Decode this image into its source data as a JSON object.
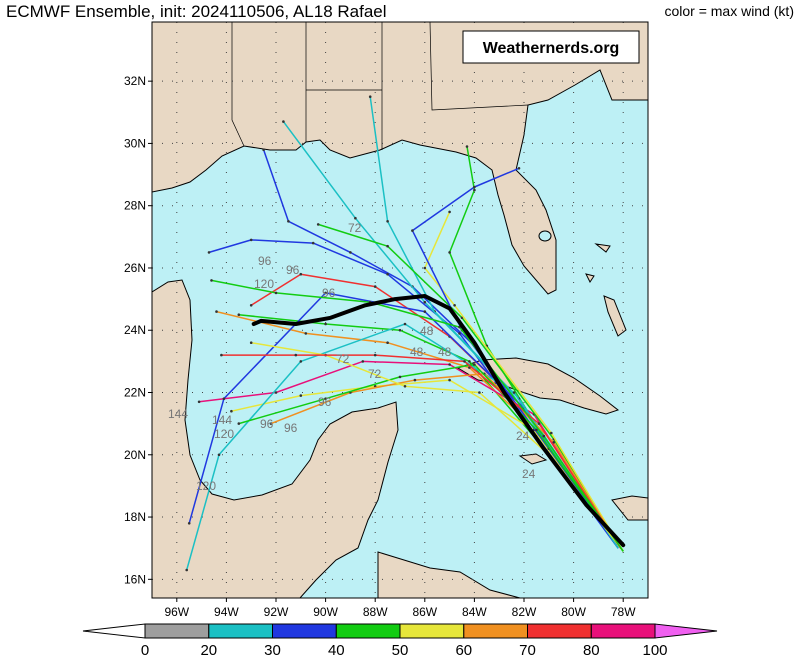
{
  "header": {
    "title": "ECMWF Ensemble, init: 2024110506, AL18 Rafael",
    "legend_note": "color = max wind (kt)"
  },
  "branding": {
    "text": "Weathernerds.org"
  },
  "map": {
    "lat_labels": [
      "32N",
      "30N",
      "28N",
      "26N",
      "24N",
      "22N",
      "20N",
      "18N",
      "16N"
    ],
    "lon_labels": [
      "96W",
      "94W",
      "92W",
      "90W",
      "88W",
      "86W",
      "84W",
      "82W",
      "80W",
      "78W"
    ],
    "ocean_color": "#bdf0f5",
    "land_color": "#e8d8c4",
    "hour_labels": [
      "144",
      "144",
      "120",
      "120",
      "120",
      "96",
      "96",
      "96",
      "96",
      "96",
      "96",
      "72",
      "72",
      "72",
      "48",
      "48",
      "48",
      "24",
      "24"
    ]
  },
  "colorbar": {
    "ticks": [
      "0",
      "20",
      "30",
      "40",
      "50",
      "60",
      "70",
      "80",
      "100"
    ],
    "colors": [
      "#ffffff",
      "#9e9e9e",
      "#1bc0c4",
      "#2038e0",
      "#12cc12",
      "#e6e63a",
      "#f09020",
      "#f03030",
      "#e8107a",
      "#f060f0"
    ]
  },
  "chart_data": {
    "type": "track-map",
    "ensemble_mean_track": [
      {
        "lon": -78.0,
        "lat": 17.1
      },
      {
        "lon": -79.5,
        "lat": 18.4
      },
      {
        "lon": -81.2,
        "lat": 20.2
      },
      {
        "lon": -82.8,
        "lat": 22.0
      },
      {
        "lon": -84.0,
        "lat": 23.6
      },
      {
        "lon": -85.0,
        "lat": 24.7
      },
      {
        "lon": -86.0,
        "lat": 25.1
      },
      {
        "lon": -87.2,
        "lat": 25.0
      },
      {
        "lon": -88.4,
        "lat": 24.8
      },
      {
        "lon": -89.8,
        "lat": 24.4
      },
      {
        "lon": -91.2,
        "lat": 24.2
      },
      {
        "lon": -92.6,
        "lat": 24.3
      },
      {
        "lon": -92.9,
        "lat": 24.2
      }
    ],
    "members": [
      {
        "color": "#2038e0",
        "points": [
          [
            -78.2,
            17.0
          ],
          [
            -81.5,
            20.6
          ],
          [
            -84.0,
            23.5
          ],
          [
            -86.5,
            25.4
          ],
          [
            -89.0,
            26.5
          ],
          [
            -91.5,
            27.5
          ],
          [
            -92.5,
            29.8
          ]
        ]
      },
      {
        "color": "#2038e0",
        "points": [
          [
            -78.2,
            17.0
          ],
          [
            -81.8,
            20.9
          ],
          [
            -84.6,
            23.9
          ],
          [
            -87.5,
            25.8
          ],
          [
            -90.5,
            26.8
          ],
          [
            -93.0,
            26.9
          ],
          [
            -94.7,
            26.5
          ]
        ]
      },
      {
        "color": "#12cc12",
        "points": [
          [
            -78.0,
            16.9
          ],
          [
            -81.0,
            20.3
          ],
          [
            -83.5,
            23.5
          ],
          [
            -85.0,
            26.5
          ],
          [
            -84.0,
            28.5
          ],
          [
            -84.3,
            29.9
          ]
        ]
      },
      {
        "color": "#12cc12",
        "points": [
          [
            -78.0,
            16.9
          ],
          [
            -81.4,
            20.4
          ],
          [
            -84.2,
            23.0
          ],
          [
            -87.0,
            24.0
          ],
          [
            -90.0,
            24.2
          ],
          [
            -93.5,
            24.5
          ]
        ]
      },
      {
        "color": "#e6e63a",
        "points": [
          [
            -78.1,
            17.0
          ],
          [
            -81.6,
            20.8
          ],
          [
            -85.0,
            22.4
          ],
          [
            -88.0,
            22.2
          ],
          [
            -91.0,
            21.9
          ],
          [
            -93.8,
            21.4
          ]
        ]
      },
      {
        "color": "#f09020",
        "points": [
          [
            -78.1,
            17.0
          ],
          [
            -81.2,
            20.6
          ],
          [
            -84.2,
            22.8
          ],
          [
            -87.5,
            23.6
          ],
          [
            -90.8,
            23.9
          ],
          [
            -94.4,
            24.6
          ]
        ]
      },
      {
        "color": "#f03030",
        "points": [
          [
            -78.1,
            17.0
          ],
          [
            -82.0,
            21.5
          ],
          [
            -85.0,
            23.8
          ],
          [
            -88.0,
            25.4
          ],
          [
            -91.0,
            25.8
          ],
          [
            -93.0,
            24.8
          ]
        ]
      },
      {
        "color": "#e8107a",
        "points": [
          [
            -78.2,
            17.1
          ],
          [
            -81.6,
            21.3
          ],
          [
            -85.0,
            22.9
          ],
          [
            -88.5,
            23.0
          ],
          [
            -92.0,
            22.0
          ],
          [
            -95.1,
            21.7
          ]
        ]
      },
      {
        "color": "#1bc0c4",
        "points": [
          [
            -78.2,
            17.1
          ],
          [
            -82.2,
            21.8
          ],
          [
            -85.6,
            24.6
          ],
          [
            -87.5,
            27.5
          ],
          [
            -88.2,
            31.5
          ]
        ]
      },
      {
        "color": "#1bc0c4",
        "points": [
          [
            -78.2,
            17.1
          ],
          [
            -82.6,
            22.1
          ],
          [
            -86.0,
            24.9
          ],
          [
            -88.8,
            27.6
          ],
          [
            -91.7,
            30.7
          ]
        ]
      },
      {
        "color": "#2038e0",
        "points": [
          [
            -78.2,
            17.0
          ],
          [
            -82.0,
            21.5
          ],
          [
            -86.0,
            24.6
          ],
          [
            -90.0,
            25.2
          ],
          [
            -94.1,
            21.8
          ],
          [
            -95.5,
            17.8
          ]
        ]
      },
      {
        "color": "#1bc0c4",
        "points": [
          [
            -78.2,
            17.0
          ],
          [
            -82.4,
            22.0
          ],
          [
            -86.8,
            24.2
          ],
          [
            -91.0,
            23.0
          ],
          [
            -94.3,
            20.0
          ],
          [
            -95.6,
            16.3
          ]
        ]
      },
      {
        "color": "#12cc12",
        "points": [
          [
            -78.0,
            16.9
          ],
          [
            -80.8,
            20.5
          ],
          [
            -84.5,
            24.4
          ],
          [
            -87.5,
            26.7
          ],
          [
            -90.3,
            27.4
          ]
        ]
      },
      {
        "color": "#e6e63a",
        "points": [
          [
            -78.0,
            16.9
          ],
          [
            -80.9,
            20.7
          ],
          [
            -84.8,
            24.8
          ],
          [
            -86.0,
            26.0
          ],
          [
            -85.0,
            27.8
          ]
        ]
      },
      {
        "color": "#f09020",
        "points": [
          [
            -78.1,
            17.0
          ],
          [
            -80.8,
            20.4
          ],
          [
            -83.6,
            22.6
          ],
          [
            -86.4,
            22.4
          ],
          [
            -89.0,
            22.0
          ],
          [
            -92.2,
            21.0
          ]
        ]
      },
      {
        "color": "#2038e0",
        "points": [
          [
            -78.2,
            17.1
          ],
          [
            -81.0,
            20.2
          ],
          [
            -84.5,
            24.0
          ],
          [
            -86.5,
            27.2
          ],
          [
            -84.0,
            28.6
          ],
          [
            -82.2,
            29.2
          ]
        ]
      },
      {
        "color": "#12cc12",
        "points": [
          [
            -78.0,
            16.9
          ],
          [
            -81.5,
            20.8
          ],
          [
            -84.0,
            22.9
          ],
          [
            -87.0,
            22.5
          ],
          [
            -90.0,
            21.8
          ],
          [
            -93.5,
            21.0
          ]
        ]
      },
      {
        "color": "#e6e63a",
        "points": [
          [
            -78.0,
            16.9
          ],
          [
            -81.0,
            20.0
          ],
          [
            -83.8,
            22.0
          ],
          [
            -86.8,
            22.2
          ],
          [
            -90.0,
            23.2
          ],
          [
            -93.0,
            23.6
          ]
        ]
      },
      {
        "color": "#f03030",
        "points": [
          [
            -78.1,
            17.0
          ],
          [
            -81.4,
            21.0
          ],
          [
            -84.4,
            23.0
          ],
          [
            -88.0,
            23.2
          ],
          [
            -91.2,
            23.2
          ],
          [
            -94.2,
            23.2
          ]
        ]
      },
      {
        "color": "#12cc12",
        "points": [
          [
            -78.0,
            16.9
          ],
          [
            -81.2,
            20.6
          ],
          [
            -84.6,
            24.1
          ],
          [
            -88.2,
            24.9
          ],
          [
            -92.0,
            25.2
          ],
          [
            -94.6,
            25.6
          ]
        ]
      }
    ]
  }
}
